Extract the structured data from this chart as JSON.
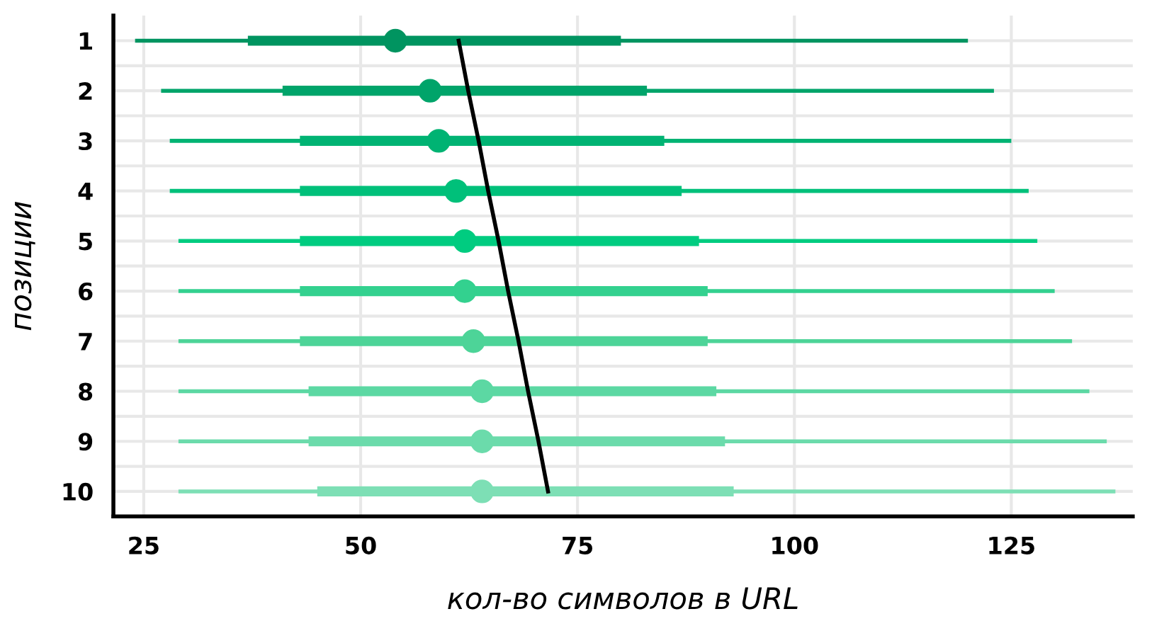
{
  "chart_data": {
    "type": "box",
    "orientation": "horizontal",
    "xlabel": "кол-во символов в URL",
    "ylabel": "позиции",
    "categories": [
      "1",
      "2",
      "3",
      "4",
      "5",
      "6",
      "7",
      "8",
      "9",
      "10"
    ],
    "boxes": [
      {
        "low": 24,
        "q1": 37,
        "median": 54,
        "q3": 80,
        "high": 120
      },
      {
        "low": 27,
        "q1": 41,
        "median": 58,
        "q3": 83,
        "high": 123
      },
      {
        "low": 28,
        "q1": 43,
        "median": 59,
        "q3": 85,
        "high": 125
      },
      {
        "low": 28,
        "q1": 43,
        "median": 61,
        "q3": 87,
        "high": 127
      },
      {
        "low": 29,
        "q1": 43,
        "median": 62,
        "q3": 89,
        "high": 128
      },
      {
        "low": 29,
        "q1": 43,
        "median": 62,
        "q3": 90,
        "high": 130
      },
      {
        "low": 29,
        "q1": 43,
        "median": 63,
        "q3": 90,
        "high": 132
      },
      {
        "low": 29,
        "q1": 44,
        "median": 64,
        "q3": 91,
        "high": 134
      },
      {
        "low": 29,
        "q1": 44,
        "median": 64,
        "q3": 92,
        "high": 136
      },
      {
        "low": 29,
        "q1": 45,
        "median": 64,
        "q3": 93,
        "high": 137
      }
    ],
    "colors": [
      "#009460",
      "#00a46a",
      "#00b373",
      "#00c07a",
      "#00cc80",
      "#33d18f",
      "#4dd498",
      "#5cd8a3",
      "#6bdbab",
      "#7ddfb5"
    ],
    "series": [
      {
        "type": "line",
        "color": "#000000",
        "values": [
          61.3,
          62.4,
          63.6,
          64.7,
          65.9,
          67.0,
          68.2,
          69.3,
          70.5,
          71.6
        ]
      }
    ],
    "xlim": [
      21.5,
      139
    ],
    "xticks": [
      25,
      50,
      75,
      100,
      125
    ],
    "grid": true,
    "legend": false
  }
}
